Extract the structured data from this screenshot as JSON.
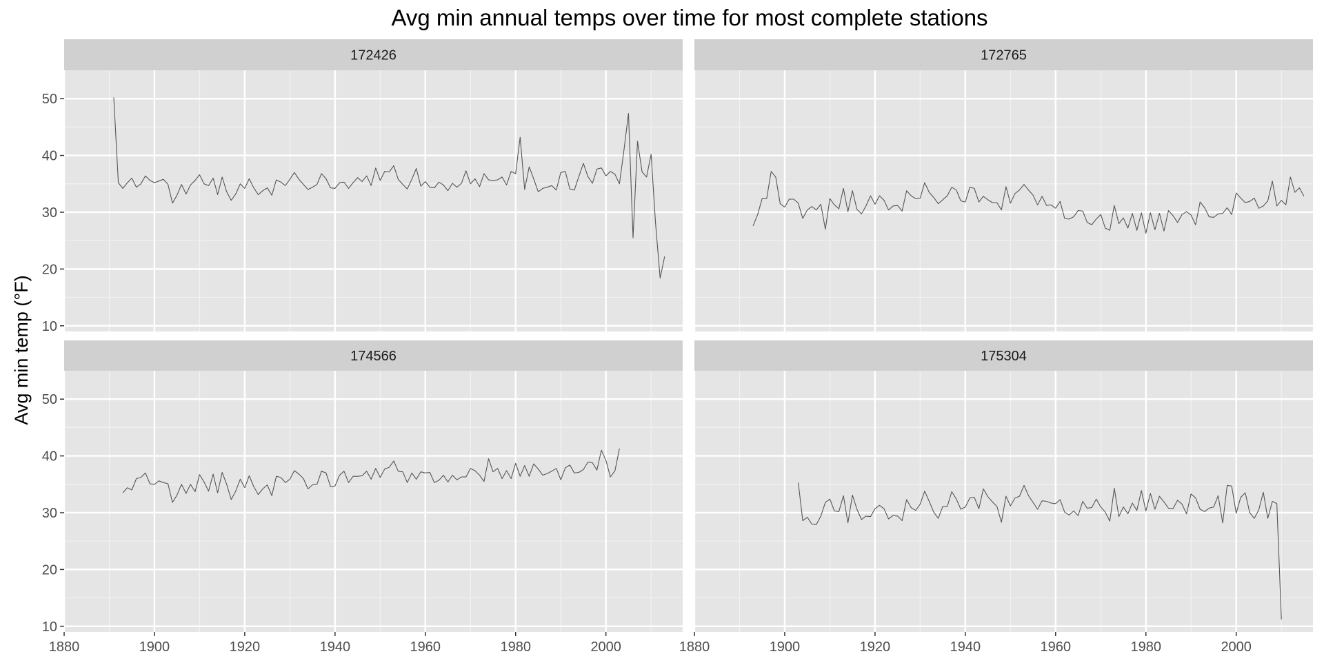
{
  "chart_data": {
    "type": "line",
    "title": "Avg min annual temps over time for most complete stations",
    "ylabel": "Avg min temp (°F)",
    "xlabel": "",
    "xlim": [
      1880,
      2017
    ],
    "ylim": [
      9,
      55
    ],
    "x_ticks": [
      1880,
      1900,
      1920,
      1940,
      1960,
      1980,
      2000
    ],
    "y_ticks": [
      10,
      20,
      30,
      40,
      50
    ],
    "grid": true,
    "line_color": "#555555",
    "panel_background": "#e5e5e5",
    "strip_background": "#d0d0d0",
    "facets": [
      {
        "station": "172426",
        "x_start": 1891,
        "values": [
          50.2,
          35.2,
          34.2,
          35.2,
          36.0,
          34.4,
          35.0,
          36.4,
          35.6,
          35.2,
          35.5,
          35.8,
          34.9,
          31.6,
          33.0,
          34.9,
          33.2,
          34.8,
          35.6,
          36.6,
          35.0,
          34.7,
          36.0,
          33.1,
          36.2,
          33.6,
          32.1,
          33.2,
          35.0,
          34.2,
          35.9,
          34.3,
          33.1,
          33.8,
          34.3,
          33.0,
          35.7,
          35.3,
          34.7,
          35.8,
          37.0,
          35.8,
          34.9,
          34.0,
          34.4,
          34.9,
          36.8,
          35.9,
          34.3,
          34.2,
          35.2,
          35.3,
          34.2,
          35.2,
          36.1,
          35.4,
          36.4,
          34.7,
          37.8,
          35.6,
          37.2,
          37.1,
          38.2,
          35.8,
          34.9,
          34.1,
          35.8,
          37.7,
          34.6,
          35.4,
          34.4,
          34.3,
          35.3,
          34.8,
          33.8,
          35.1,
          34.4,
          35.1,
          37.3,
          35.0,
          35.9,
          34.5,
          36.8,
          35.7,
          35.6,
          35.7,
          36.2,
          34.8,
          37.2,
          36.8,
          43.2,
          34.0,
          38.0,
          35.9,
          33.6,
          34.2,
          34.4,
          34.7,
          33.9,
          37.0,
          37.2,
          34.1,
          33.9,
          36.3,
          38.6,
          36.3,
          35.1,
          37.6,
          37.8,
          36.4,
          37.2,
          36.7,
          35.0,
          41.0,
          47.4,
          25.5,
          42.5,
          37.1,
          36.2,
          40.2,
          28.0,
          18.4,
          22.2
        ]
      },
      {
        "station": "172765",
        "x_start": 1893,
        "values": [
          27.6,
          29.6,
          32.4,
          32.4,
          37.2,
          36.2,
          31.5,
          30.9,
          32.3,
          32.3,
          31.6,
          28.9,
          30.4,
          31.0,
          30.4,
          31.4,
          27.0,
          32.4,
          31.3,
          30.6,
          34.2,
          30.1,
          33.8,
          30.5,
          29.7,
          31.1,
          32.9,
          31.4,
          32.9,
          32.1,
          30.4,
          31.1,
          31.2,
          30.2,
          33.8,
          32.9,
          32.4,
          32.5,
          35.2,
          33.5,
          32.6,
          31.5,
          32.2,
          32.9,
          34.4,
          33.9,
          32.0,
          31.8,
          34.4,
          34.2,
          31.8,
          32.8,
          32.2,
          31.7,
          31.7,
          30.4,
          34.5,
          31.6,
          33.3,
          33.9,
          34.9,
          33.9,
          33.0,
          31.3,
          32.8,
          31.2,
          31.3,
          30.7,
          31.9,
          28.9,
          28.8,
          29.2,
          30.3,
          30.2,
          28.2,
          27.8,
          28.8,
          29.6,
          27.2,
          26.8,
          31.2,
          28.0,
          29.0,
          27.2,
          29.8,
          26.8,
          29.9,
          26.3,
          29.9,
          26.9,
          29.8,
          26.7,
          30.3,
          29.4,
          28.2,
          29.6,
          30.1,
          29.5,
          27.8,
          31.8,
          30.8,
          29.2,
          29.1,
          29.7,
          29.8,
          30.8,
          29.6,
          33.4,
          32.5,
          31.7,
          31.9,
          32.5,
          30.7,
          31.1,
          32.0,
          35.5,
          31.1,
          32.1,
          31.3,
          36.2,
          33.5,
          34.3,
          32.8
        ]
      },
      {
        "station": "174566",
        "x_start": 1893,
        "values": [
          33.5,
          34.4,
          34.0,
          36.0,
          36.2,
          37.0,
          35.1,
          35.0,
          35.6,
          35.3,
          35.1,
          31.8,
          33.1,
          35.0,
          33.4,
          35.0,
          33.7,
          36.7,
          35.4,
          33.8,
          36.8,
          33.5,
          37.1,
          35.0,
          32.3,
          33.8,
          35.9,
          34.4,
          36.5,
          34.6,
          33.2,
          34.2,
          34.9,
          33.0,
          36.4,
          36.2,
          35.3,
          35.9,
          37.4,
          36.8,
          36.0,
          34.2,
          34.9,
          35.0,
          37.3,
          37.0,
          34.6,
          34.7,
          36.6,
          37.3,
          35.3,
          36.4,
          36.4,
          36.5,
          37.3,
          35.9,
          37.8,
          36.2,
          37.7,
          38.0,
          39.1,
          37.3,
          37.2,
          35.3,
          37.0,
          35.9,
          37.2,
          37.0,
          37.1,
          35.3,
          35.7,
          36.6,
          35.4,
          36.6,
          35.8,
          36.3,
          36.3,
          37.8,
          37.4,
          36.6,
          35.5,
          39.5,
          37.2,
          37.8,
          36.0,
          37.4,
          36.0,
          38.7,
          36.4,
          38.3,
          36.4,
          38.6,
          37.7,
          36.6,
          36.9,
          37.3,
          37.8,
          35.8,
          37.9,
          38.4,
          37.0,
          37.1,
          37.6,
          38.9,
          38.8,
          37.5,
          41.0,
          39.2,
          36.3,
          37.4,
          41.3
        ]
      },
      {
        "station": "175304",
        "x_start": 1903,
        "values": [
          35.3,
          28.6,
          29.2,
          28.0,
          27.9,
          29.4,
          31.8,
          32.4,
          30.3,
          30.2,
          33.0,
          28.2,
          33.1,
          30.6,
          28.8,
          29.4,
          29.3,
          30.7,
          31.3,
          30.7,
          28.9,
          29.5,
          29.4,
          28.6,
          32.3,
          30.9,
          30.4,
          31.5,
          33.8,
          32.0,
          30.1,
          29.0,
          31.1,
          31.1,
          33.7,
          32.4,
          30.6,
          31.0,
          32.6,
          32.7,
          30.7,
          34.2,
          32.8,
          31.9,
          31.1,
          28.3,
          32.9,
          31.2,
          32.6,
          32.9,
          34.8,
          33.0,
          31.8,
          30.6,
          32.1,
          32.0,
          31.7,
          31.6,
          32.3,
          30.1,
          29.6,
          30.3,
          29.5,
          32.0,
          30.8,
          30.9,
          32.4,
          31.0,
          30.1,
          28.5,
          34.3,
          29.3,
          31.0,
          29.8,
          31.7,
          30.4,
          33.9,
          30.3,
          33.4,
          30.6,
          32.9,
          31.9,
          30.8,
          30.7,
          32.2,
          31.5,
          29.8,
          33.3,
          32.6,
          30.6,
          30.2,
          30.8,
          31.0,
          33.0,
          28.2,
          34.8,
          34.7,
          29.9,
          32.7,
          33.5,
          30.0,
          29.0,
          30.5,
          33.6,
          29.0,
          32.0,
          31.6,
          11.2
        ]
      }
    ]
  }
}
